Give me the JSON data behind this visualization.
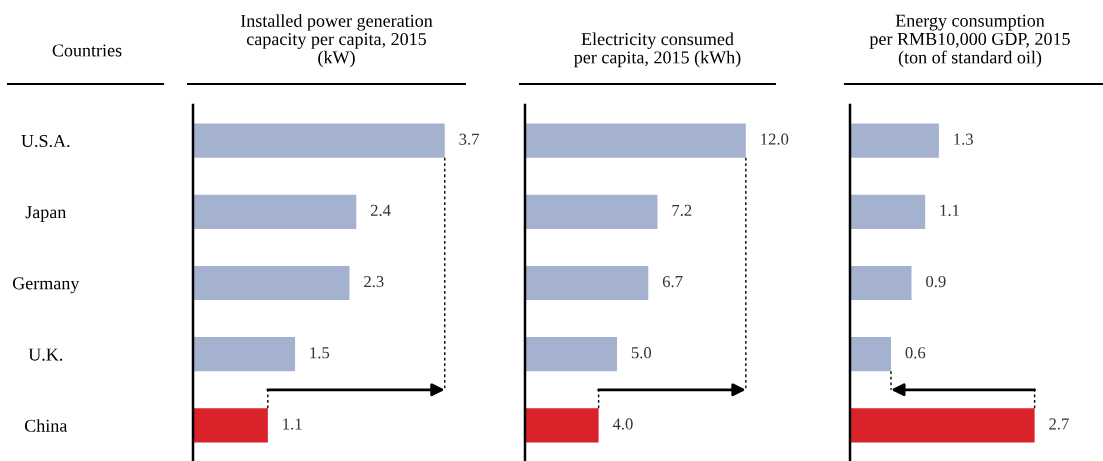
{
  "chart_data": [
    {
      "type": "bar",
      "orientation": "horizontal",
      "title": "Installed power generation\ncapacity per capita, 2015\n(kW)",
      "ylabel": "Countries",
      "categories": [
        "U.S.A.",
        "Japan",
        "Germany",
        "U.K.",
        "China"
      ],
      "values": [
        3.7,
        2.4,
        2.3,
        1.5,
        1.1
      ],
      "colors": [
        "#a5b2cf",
        "#a5b2cf",
        "#a5b2cf",
        "#a5b2cf",
        "#d9222a"
      ],
      "value_labels": [
        "3.7",
        "2.4",
        "2.3",
        "1.5",
        "1.1"
      ]
    },
    {
      "type": "bar",
      "orientation": "horizontal",
      "title": "Electricity consumed\nper capita, 2015 (kWh)",
      "values": [
        12.0,
        7.2,
        6.7,
        5.0,
        4.0
      ],
      "colors": [
        "#a5b2cf",
        "#a5b2cf",
        "#a5b2cf",
        "#a5b2cf",
        "#d9222a"
      ],
      "value_labels": [
        "12.0",
        "7.2",
        "6.7",
        "5.0",
        "4.0"
      ]
    },
    {
      "type": "bar",
      "orientation": "horizontal",
      "title": "Energy consumption\nper RMB10,000 GDP, 2015\n(ton of standard oil)",
      "values": [
        1.3,
        1.1,
        0.9,
        0.6,
        2.7
      ],
      "colors": [
        "#a5b2cf",
        "#a5b2cf",
        "#a5b2cf",
        "#a5b2cf",
        "#d9222a"
      ],
      "value_labels": [
        "1.3",
        "1.1",
        "0.9",
        "0.6",
        "2.7"
      ]
    }
  ]
}
